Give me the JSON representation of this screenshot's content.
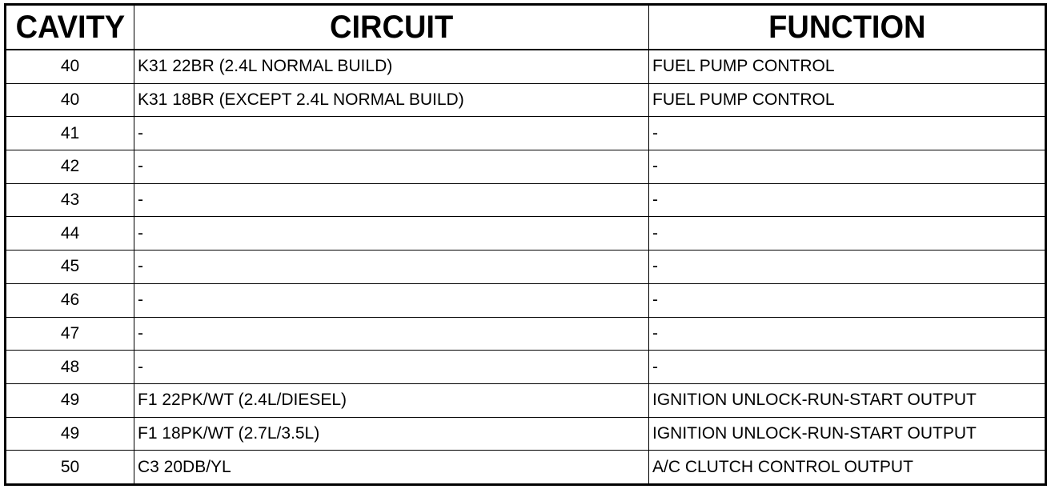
{
  "headers": {
    "cavity": "CAVITY",
    "circuit": "CIRCUIT",
    "function": "FUNCTION"
  },
  "rows": [
    {
      "cavity": "40",
      "circuit": "K31 22BR (2.4L NORMAL BUILD)",
      "function": "FUEL PUMP CONTROL"
    },
    {
      "cavity": "40",
      "circuit": "K31 18BR (EXCEPT 2.4L NORMAL BUILD)",
      "function": "FUEL PUMP CONTROL"
    },
    {
      "cavity": "41",
      "circuit": "-",
      "function": "-"
    },
    {
      "cavity": "42",
      "circuit": "-",
      "function": "-"
    },
    {
      "cavity": "43",
      "circuit": "-",
      "function": "-"
    },
    {
      "cavity": "44",
      "circuit": "-",
      "function": "-"
    },
    {
      "cavity": "45",
      "circuit": "-",
      "function": "-"
    },
    {
      "cavity": "46",
      "circuit": "-",
      "function": "-"
    },
    {
      "cavity": "47",
      "circuit": "-",
      "function": "-"
    },
    {
      "cavity": "48",
      "circuit": "-",
      "function": "-"
    },
    {
      "cavity": "49",
      "circuit": "F1 22PK/WT (2.4L/DIESEL)",
      "function": "IGNITION UNLOCK-RUN-START OUTPUT"
    },
    {
      "cavity": "49",
      "circuit": "F1 18PK/WT (2.7L/3.5L)",
      "function": "IGNITION UNLOCK-RUN-START OUTPUT"
    },
    {
      "cavity": "50",
      "circuit": "C3 20DB/YL",
      "function": "A/C CLUTCH CONTROL OUTPUT"
    }
  ]
}
